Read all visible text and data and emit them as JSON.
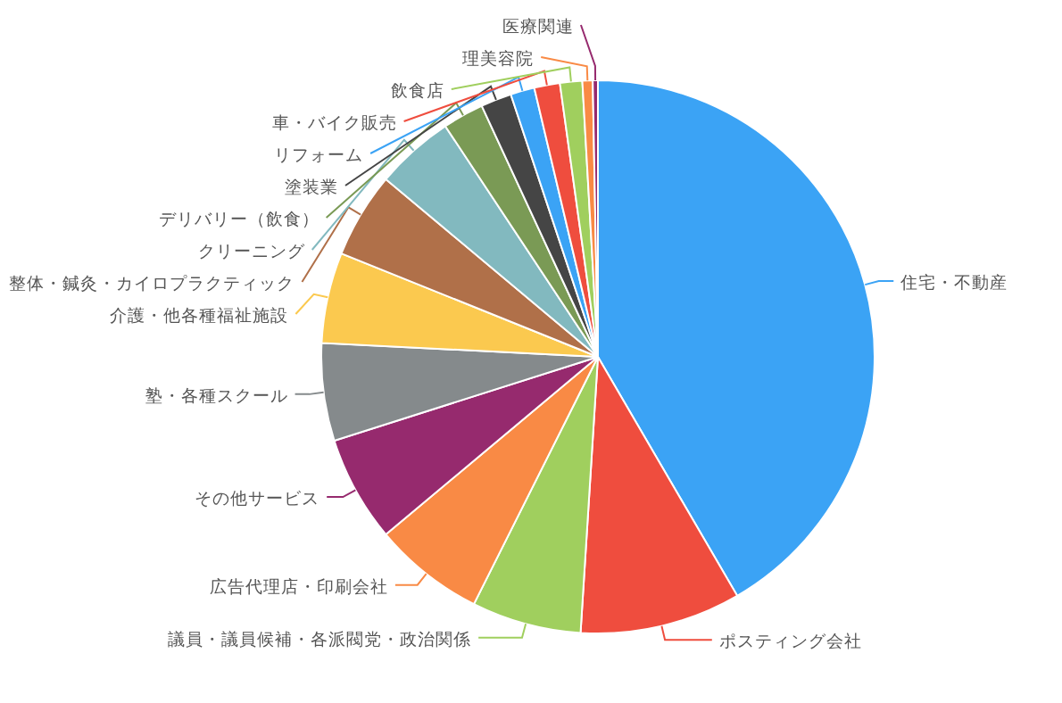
{
  "chart_data": {
    "type": "pie",
    "categories": [
      "住宅・不動産",
      "ポスティング会社",
      "議員・議員候補・各派閥党・政治関係",
      "広告代理店・印刷会社",
      "その他サービス",
      "塾・各種スクール",
      "介護・他各種福祉施設",
      "整体・鍼灸・カイロプラクティック",
      "クリーニング",
      "デリバリー（飲食）",
      "塗装業",
      "リフォーム",
      "車・バイク販売",
      "飲食店",
      "理美容院",
      "医療関連"
    ],
    "values": [
      41.6,
      9.4,
      6.4,
      6.5,
      6.2,
      5.7,
      5.3,
      5.0,
      4.6,
      2.4,
      1.8,
      1.4,
      1.5,
      1.3,
      0.6,
      0.3
    ],
    "colors": [
      "#3ba3f5",
      "#ef4d3e",
      "#a0cf5e",
      "#f98a45",
      "#962a6e",
      "#858a8c",
      "#fbc94f",
      "#b07049",
      "#82b9bf",
      "#7a9a55",
      "#454545",
      "#3ba3f5",
      "#ef4d3e",
      "#a0cf5e",
      "#f98a45",
      "#962a6e"
    ]
  }
}
